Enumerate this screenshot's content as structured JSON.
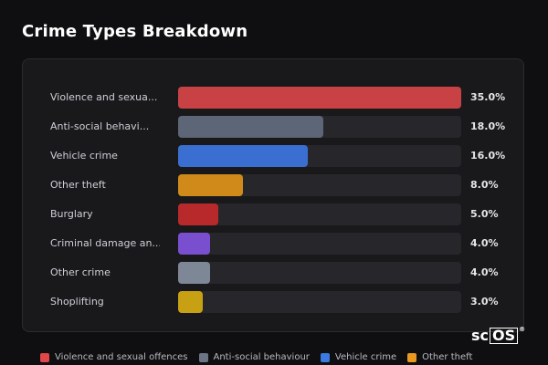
{
  "title": "Crime Types Breakdown",
  "chart_data": {
    "type": "bar",
    "orientation": "horizontal",
    "title": "Crime Types Breakdown",
    "categories": [
      "Violence and sexua...",
      "Anti-social behavi...",
      "Vehicle crime",
      "Other theft",
      "Burglary",
      "Criminal damage an...",
      "Other crime",
      "Shoplifting"
    ],
    "values": [
      35.0,
      18.0,
      16.0,
      8.0,
      5.0,
      4.0,
      4.0,
      3.0
    ],
    "value_labels": [
      "35.0%",
      "18.0%",
      "16.0%",
      "8.0%",
      "5.0%",
      "4.0%",
      "4.0%",
      "3.0%"
    ],
    "colors": [
      "#c84145",
      "#5c6676",
      "#3a6fd1",
      "#cf8a1a",
      "#b8292b",
      "#7a4fcf",
      "#7e8796",
      "#c7a014"
    ],
    "xlim": [
      0,
      35
    ],
    "legend": {
      "placement": "bottom",
      "items": [
        {
          "label": "Violence and sexual offences",
          "color": "#e0464a"
        },
        {
          "label": "Anti-social behaviour",
          "color": "#6b7585"
        },
        {
          "label": "Vehicle crime",
          "color": "#3b7ae0"
        },
        {
          "label": "Other theft",
          "color": "#e99a1f"
        }
      ]
    }
  },
  "logo": {
    "text_plain": "sc",
    "text_box": "OS",
    "mark": "®"
  }
}
